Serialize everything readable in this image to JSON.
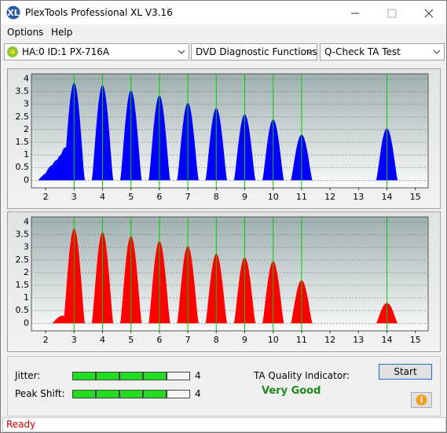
{
  "window": {
    "title": "PlexTools Professional XL V3.16",
    "status": "Ready"
  },
  "menu": [
    "Options",
    "Help"
  ],
  "toolbar": {
    "drive": "HA:0 ID:1  PX-716A",
    "function_group": "DVD Diagnostic Functions",
    "test": "Q-Check TA Test"
  },
  "charts": [
    {
      "type": "area",
      "color": "#0000ff",
      "xlim": [
        1.5,
        15.45
      ],
      "ylim": [
        -0.3,
        4.2
      ],
      "xticks": [
        2,
        3,
        4,
        5,
        6,
        7,
        8,
        9,
        10,
        11,
        12,
        13,
        14,
        15
      ],
      "yticks": [
        0,
        0.5,
        1,
        1.5,
        2,
        2.5,
        3,
        3.5,
        4
      ],
      "reference_lines": [
        3,
        4,
        5,
        6,
        7,
        8,
        9,
        10,
        11,
        14
      ],
      "reference_color": "#00cc00",
      "grid": true,
      "x": [
        2.1,
        2.25,
        2.4,
        2.55,
        2.7,
        3,
        4,
        5,
        6,
        7,
        8,
        9,
        10,
        11,
        14
      ],
      "values": [
        0.3,
        0.6,
        0.8,
        1.0,
        1.3,
        3.85,
        3.75,
        3.55,
        3.35,
        3.05,
        2.85,
        2.6,
        2.4,
        1.8,
        2.05
      ]
    },
    {
      "type": "area",
      "color": "#ff0000",
      "xlim": [
        1.5,
        15.45
      ],
      "ylim": [
        -0.3,
        4.2
      ],
      "xticks": [
        2,
        3,
        4,
        5,
        6,
        7,
        8,
        9,
        10,
        11,
        12,
        13,
        14,
        15
      ],
      "yticks": [
        0,
        0.5,
        1,
        1.5,
        2,
        2.5,
        3,
        3.5,
        4
      ],
      "reference_lines": [
        3,
        4,
        5,
        6,
        7,
        8,
        9,
        10,
        11,
        14
      ],
      "reference_color": "#00cc00",
      "grid": true,
      "x": [
        2.6,
        3,
        4,
        5,
        6,
        7,
        8,
        9,
        10,
        11,
        14
      ],
      "values": [
        0.3,
        3.75,
        3.6,
        3.45,
        3.25,
        3.05,
        2.75,
        2.6,
        2.45,
        1.7,
        0.8
      ]
    }
  ],
  "results": {
    "jitter_label": "Jitter:",
    "jitter": 4,
    "peak_shift_label": "Peak Shift:",
    "peak_shift": 4,
    "quality_label": "TA Quality Indicator:",
    "quality": "Very Good",
    "start": "Start"
  }
}
